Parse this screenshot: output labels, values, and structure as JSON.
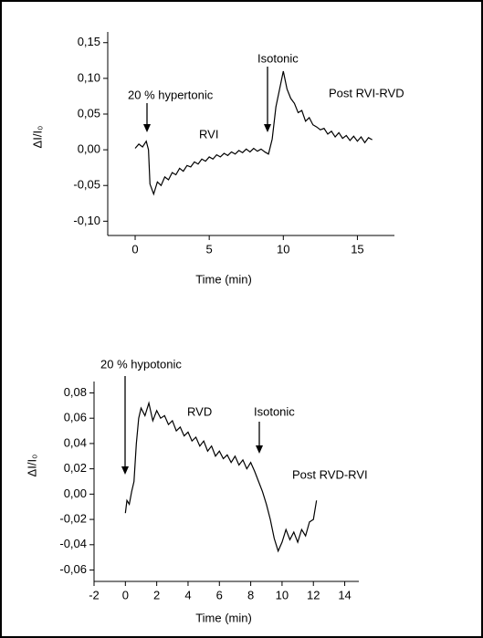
{
  "chart_data": [
    {
      "type": "line",
      "ylabel": "ΔI/I₀",
      "xlabel": "Time (min)",
      "color": "#000000",
      "annotations": [
        "20 % hypertonic",
        "RVI",
        "Isotonic",
        "Post RVI-RVD"
      ],
      "xlim": [
        -1.85,
        17.5
      ],
      "ylim": [
        -0.12,
        0.165
      ],
      "xticks": [
        0,
        5,
        10,
        15
      ],
      "yticks": [
        {
          "value": 0.15,
          "label": "0,15"
        },
        {
          "value": 0.1,
          "label": "0,10"
        },
        {
          "value": 0.05,
          "label": "0,05"
        },
        {
          "value": 0,
          "label": "0,00"
        },
        {
          "value": -0.05,
          "label": "-0,05"
        },
        {
          "value": -0.1,
          "label": "-0,10"
        }
      ],
      "x": [
        0,
        0.25,
        0.5,
        0.75,
        0.9,
        1,
        1.25,
        1.5,
        1.75,
        2,
        2.25,
        2.5,
        2.75,
        3,
        3.25,
        3.5,
        3.75,
        4,
        4.25,
        4.5,
        4.75,
        5,
        5.25,
        5.5,
        5.75,
        6,
        6.25,
        6.5,
        6.75,
        7,
        7.25,
        7.5,
        7.75,
        8,
        8.25,
        8.5,
        8.75,
        9,
        9.25,
        9.5,
        9.75,
        10,
        10.25,
        10.5,
        10.75,
        11,
        11.25,
        11.5,
        11.75,
        12,
        12.25,
        12.5,
        12.75,
        13,
        13.25,
        13.5,
        13.75,
        14,
        14.25,
        14.5,
        14.75,
        15,
        15.25,
        15.5,
        15.75,
        16
      ],
      "values": [
        0.002,
        0.008,
        0.004,
        0.012,
        0.0,
        -0.048,
        -0.062,
        -0.045,
        -0.05,
        -0.038,
        -0.042,
        -0.032,
        -0.035,
        -0.026,
        -0.03,
        -0.022,
        -0.024,
        -0.017,
        -0.02,
        -0.013,
        -0.016,
        -0.01,
        -0.013,
        -0.007,
        -0.01,
        -0.005,
        -0.008,
        -0.003,
        -0.006,
        -0.001,
        -0.004,
        0.001,
        -0.003,
        0.002,
        -0.002,
        0.001,
        -0.003,
        -0.006,
        0.015,
        0.06,
        0.085,
        0.11,
        0.085,
        0.072,
        0.065,
        0.052,
        0.055,
        0.04,
        0.045,
        0.035,
        0.032,
        0.028,
        0.03,
        0.022,
        0.026,
        0.018,
        0.024,
        0.016,
        0.02,
        0.013,
        0.019,
        0.012,
        0.018,
        0.01,
        0.017,
        0.014
      ]
    },
    {
      "type": "line",
      "ylabel": "ΔI/I₀",
      "xlabel": "Time (min)",
      "color": "#000000",
      "annotations": [
        "20 % hypotonic",
        "RVD",
        "Isotonic",
        "Post RVD-RVI"
      ],
      "xlim": [
        -2,
        14.9
      ],
      "ylim": [
        -0.069,
        0.089
      ],
      "xticks": [
        -2,
        0,
        2,
        4,
        6,
        8,
        10,
        12,
        14
      ],
      "yticks": [
        {
          "value": 0.08,
          "label": "0,08"
        },
        {
          "value": 0.06,
          "label": "0,06"
        },
        {
          "value": 0.04,
          "label": "0,04"
        },
        {
          "value": 0.02,
          "label": "0,02"
        },
        {
          "value": 0,
          "label": "0,00"
        },
        {
          "value": -0.02,
          "label": "-0,02"
        },
        {
          "value": -0.04,
          "label": "-0,04"
        },
        {
          "value": -0.06,
          "label": "-0,06"
        }
      ],
      "x": [
        0,
        0.1,
        0.25,
        0.4,
        0.55,
        0.7,
        0.85,
        1,
        1.25,
        1.5,
        1.75,
        2,
        2.25,
        2.5,
        2.75,
        3,
        3.25,
        3.5,
        3.75,
        4,
        4.25,
        4.5,
        4.75,
        5,
        5.25,
        5.5,
        5.75,
        6,
        6.25,
        6.5,
        6.75,
        7,
        7.25,
        7.5,
        7.75,
        8,
        8.25,
        8.5,
        8.75,
        9,
        9.25,
        9.5,
        9.75,
        10,
        10.25,
        10.5,
        10.75,
        11,
        11.25,
        11.5,
        11.75,
        12,
        12.2
      ],
      "values": [
        -0.015,
        -0.005,
        -0.008,
        0.002,
        0.01,
        0.04,
        0.06,
        0.068,
        0.062,
        0.072,
        0.058,
        0.066,
        0.06,
        0.062,
        0.055,
        0.058,
        0.05,
        0.053,
        0.046,
        0.049,
        0.042,
        0.045,
        0.038,
        0.042,
        0.034,
        0.038,
        0.03,
        0.034,
        0.028,
        0.031,
        0.025,
        0.03,
        0.023,
        0.027,
        0.02,
        0.025,
        0.018,
        0.01,
        0.002,
        -0.008,
        -0.02,
        -0.035,
        -0.045,
        -0.038,
        -0.028,
        -0.036,
        -0.03,
        -0.038,
        -0.028,
        -0.033,
        -0.022,
        -0.02,
        -0.005
      ]
    }
  ]
}
